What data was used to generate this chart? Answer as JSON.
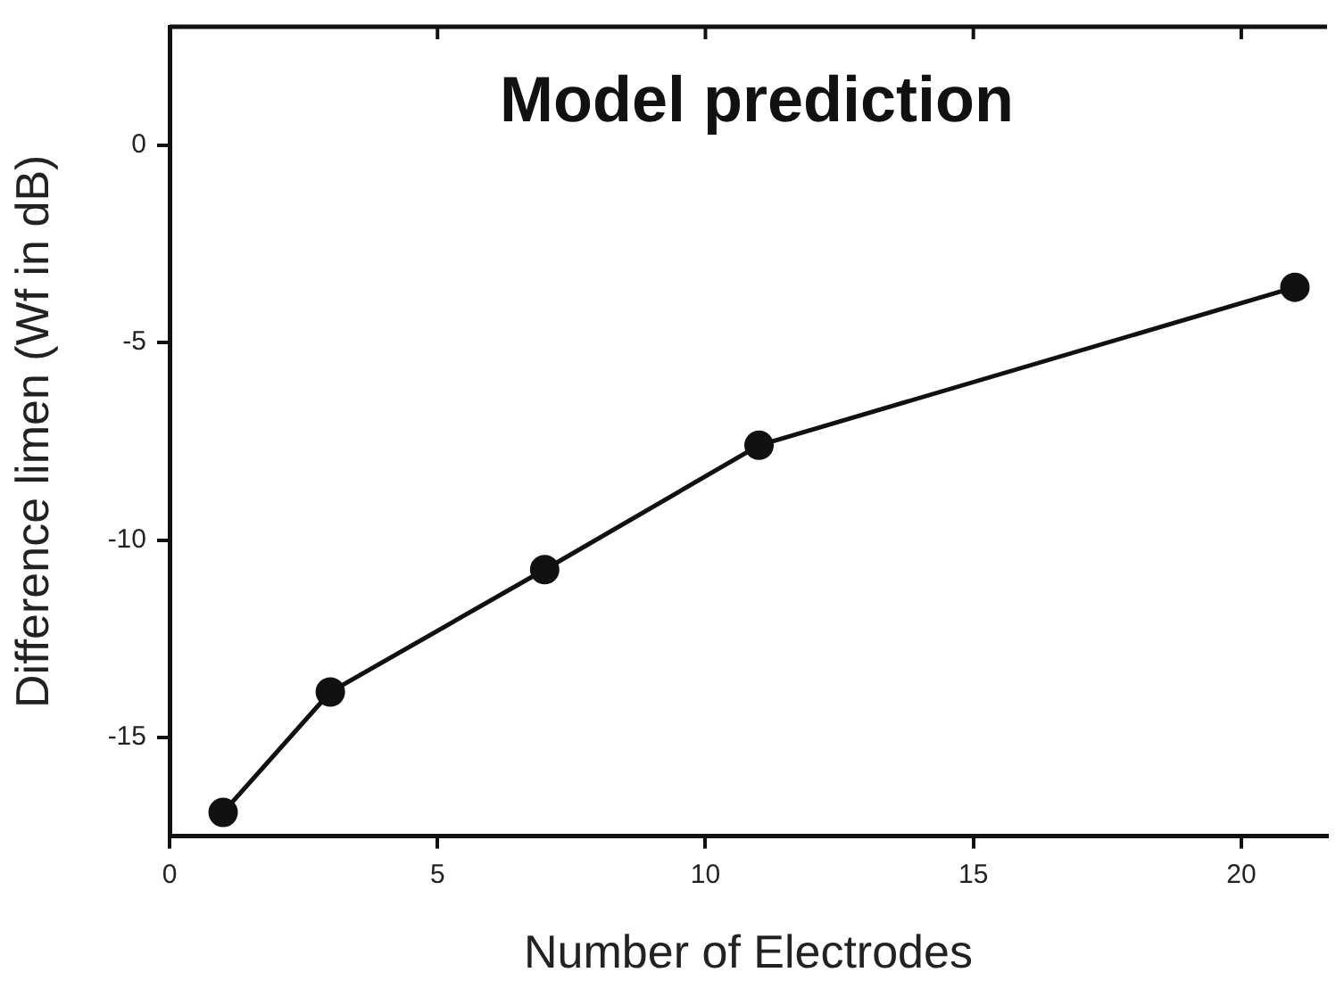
{
  "chart_data": {
    "type": "line",
    "title": "Model prediction",
    "xlabel": "Number of Electrodes",
    "ylabel": "Difference limen (Wf in dB)",
    "x": [
      1,
      3,
      7,
      11,
      21
    ],
    "series": [
      {
        "color": "#111111",
        "values": [
          -16.9,
          -13.85,
          -10.75,
          -7.6,
          -3.6
        ]
      }
    ],
    "xlim": [
      0,
      21.6
    ],
    "xticks": [
      0,
      5,
      10,
      15,
      20
    ],
    "ylim": [
      -17.5,
      3
    ],
    "yticks": [
      -15,
      -10,
      -5,
      0
    ],
    "marker": "circle",
    "line_style": "solid",
    "grid": false,
    "legend": false
  }
}
